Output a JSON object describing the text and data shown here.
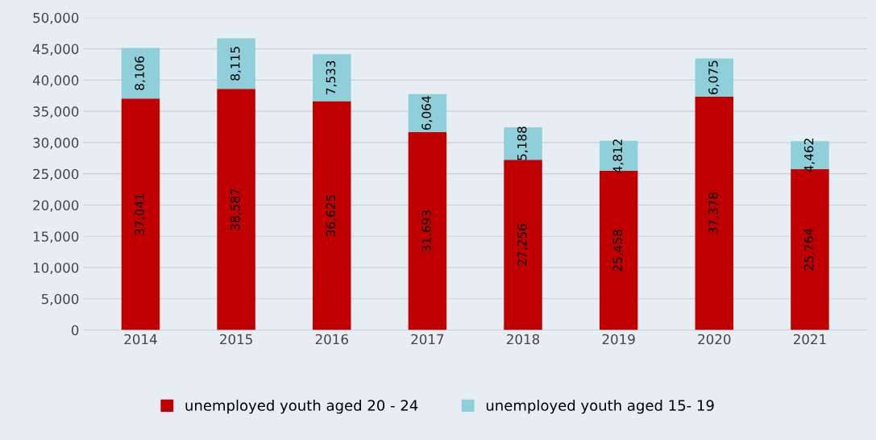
{
  "chart_data": {
    "type": "bar",
    "stacked": true,
    "categories": [
      "2014",
      "2015",
      "2016",
      "2017",
      "2018",
      "2019",
      "2020",
      "2021"
    ],
    "series": [
      {
        "name": "unemployed youth aged 20 - 24",
        "color": "#c00000",
        "values": [
          37041,
          38587,
          36625,
          31693,
          27256,
          25458,
          37378,
          25764
        ],
        "value_labels": [
          "37,041",
          "38,587",
          "36,625",
          "31,693",
          "27,256",
          "25,458",
          "37,378",
          "25,764"
        ]
      },
      {
        "name": "unemployed youth aged 15- 19",
        "color": "#8ecfd9",
        "values": [
          8106,
          8115,
          7533,
          6064,
          5188,
          4812,
          6075,
          4462
        ],
        "value_labels": [
          "8,106",
          "8,115",
          "7,533",
          "6,064",
          "5,188",
          "4,812",
          "6,075",
          "4,462"
        ]
      }
    ],
    "ylim": [
      0,
      50000
    ],
    "yticks": [
      {
        "value": 0,
        "label": "0"
      },
      {
        "value": 5000,
        "label": "5,000"
      },
      {
        "value": 10000,
        "label": "10,000"
      },
      {
        "value": 15000,
        "label": "15,000"
      },
      {
        "value": 20000,
        "label": "20,000"
      },
      {
        "value": 25000,
        "label": "25,000"
      },
      {
        "value": 30000,
        "label": "30,000"
      },
      {
        "value": 35000,
        "label": "35,000"
      },
      {
        "value": 40000,
        "label": "40,000"
      },
      {
        "value": 45000,
        "label": "45,000"
      },
      {
        "value": 50000,
        "label": "50,000"
      }
    ],
    "grid": "y",
    "legend": "bottom"
  }
}
